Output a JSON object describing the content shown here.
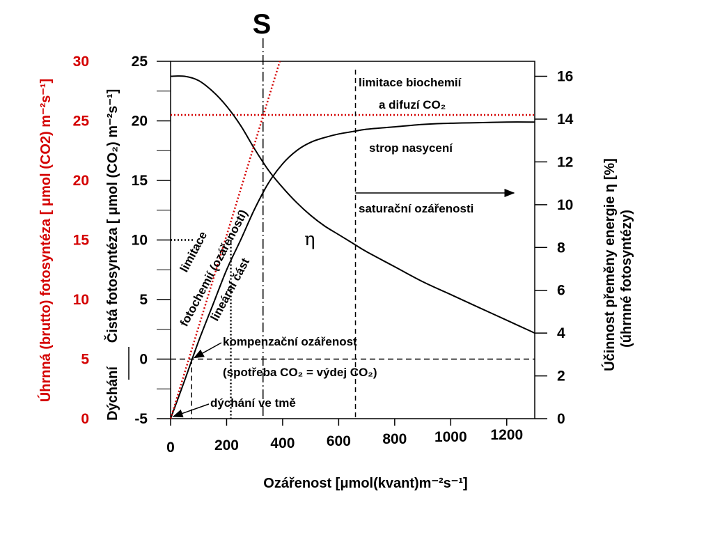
{
  "chart_data": {
    "type": "line",
    "marker_label": "S",
    "xlabel": "Ozářenost [μmol(kvant)m⁻²s⁻¹]",
    "ylabel_left_outer": "Úhrnná (brutto) fotosyntéza [ μmol (CO2) m⁻²s⁻¹]",
    "ylabel_left_inner": "Čistá fotosyntéza [ μmol (CO₂) m⁻²s⁻¹]",
    "ylabel_left_bottom": "Dýchání",
    "ylabel_right": "Účinnost přeměny energie η  [%]",
    "ylabel_right_sub": "(úhrnné fotosyntézy)",
    "xlim": [
      0,
      1300
    ],
    "ylim_net": [
      -5,
      25
    ],
    "ylim_gross": [
      0,
      30
    ],
    "ylim_eff": [
      0,
      16.7
    ],
    "x_ticks": [
      "0",
      "200",
      "400",
      "600",
      "800",
      "1000",
      "1200"
    ],
    "y_ticks_net": [
      "-5",
      "0",
      "5",
      "10",
      "15",
      "20",
      "25"
    ],
    "y_ticks_gross": [
      "0",
      "5",
      "10",
      "15",
      "20",
      "25",
      "30"
    ],
    "y_ticks_eff": [
      "0",
      "2",
      "4",
      "6",
      "8",
      "10",
      "12",
      "14",
      "16"
    ],
    "series": [
      {
        "role": "net-photosynthesis",
        "axis": "net",
        "x": [
          0,
          50,
          100,
          150,
          200,
          250,
          300,
          350,
          400,
          450,
          500,
          550,
          600,
          650,
          700,
          800,
          900,
          1000,
          1100,
          1200,
          1300
        ],
        "y": [
          -5,
          -1.8,
          1.5,
          4.5,
          7.5,
          10,
          12.6,
          14.8,
          16.4,
          17.5,
          18.2,
          18.6,
          18.9,
          19.1,
          19.3,
          19.5,
          19.7,
          19.8,
          19.85,
          19.9,
          19.9
        ]
      },
      {
        "role": "efficiency",
        "axis": "eff",
        "label": "η",
        "x": [
          0,
          50,
          100,
          150,
          200,
          250,
          300,
          350,
          400,
          450,
          500,
          550,
          600,
          650,
          700,
          800,
          900,
          1000,
          1100,
          1200,
          1300
        ],
        "y": [
          16,
          16,
          15.8,
          15.3,
          14.6,
          13.7,
          12.6,
          11.6,
          10.8,
          10.1,
          9.5,
          9.0,
          8.6,
          8.2,
          7.8,
          7.1,
          6.4,
          5.8,
          5.2,
          4.6,
          4.0
        ]
      },
      {
        "role": "linear-extrapolation",
        "axis": "net",
        "x": [
          0,
          390
        ],
        "y": [
          -5,
          25
        ]
      }
    ],
    "hlines": [
      {
        "axis": "net",
        "y": 20.5,
        "style": "dotted",
        "color": "#d40000"
      },
      {
        "axis": "net",
        "y": 0,
        "style": "dashed",
        "color": "#000000"
      },
      {
        "axis": "net",
        "y": 10,
        "style": "dotted",
        "color": "#000000",
        "x_from": 0,
        "x_to": 80
      }
    ],
    "vlines": [
      {
        "x": 330,
        "style": "dashdot",
        "extend_top": true
      },
      {
        "x": 660,
        "style": "dashed"
      },
      {
        "x": 75,
        "style": "dashed",
        "y_to": 0
      },
      {
        "x": 215,
        "style": "dotted",
        "y_to": 10
      }
    ],
    "annotations": {
      "biochem_1": "limitace biochemií",
      "biochem_2": "a difuzí CO₂",
      "ceiling": "strop nasycení",
      "saturation": "saturační ozářenosti",
      "compensation": "kompenzační ozářenost",
      "consumption": "(spotřeba CO₂ = výdej CO₂)",
      "dark_resp": "dýchání ve tmě",
      "limit_1": "limitace",
      "limit_2": "fotochemií (ozářeností)",
      "linear": "lineární část",
      "eta": "η"
    },
    "colors": {
      "gross_axis": "#d40000",
      "main": "#000000",
      "extrapolation": "#d40000"
    }
  }
}
